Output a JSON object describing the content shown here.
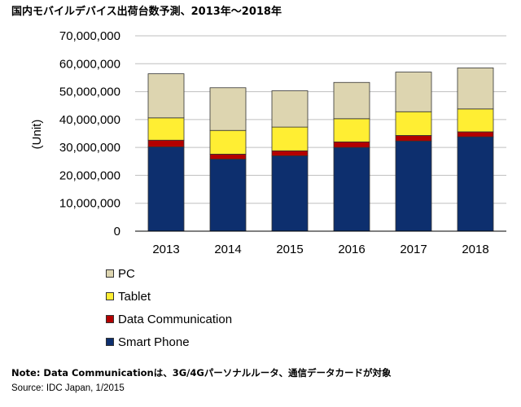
{
  "title": "国内モバイルデバイス出荷台数予測、2013年～2018年",
  "colors": {
    "pc": "#ddd5b0",
    "tablet": "#ffee33",
    "data_communication": "#b30000",
    "smart_phone": "#0d2f6e"
  },
  "chart_data": {
    "type": "bar",
    "stacked": true,
    "categories": [
      "2013",
      "2014",
      "2015",
      "2016",
      "2017",
      "2018"
    ],
    "ylabel": "(Unit)",
    "ylim": [
      0,
      70000000
    ],
    "yticks": [
      "0",
      "10,000,000",
      "20,000,000",
      "30,000,000",
      "40,000,000",
      "50,000,000",
      "60,000,000",
      "70,000,000"
    ],
    "grid": true,
    "legend_position": "bottom-left",
    "series": [
      {
        "name": "Smart Phone",
        "color_key": "smart_phone",
        "values": [
          30200000,
          25800000,
          27000000,
          30000000,
          32300000,
          33800000
        ]
      },
      {
        "name": "Data Communication",
        "color_key": "data_communication",
        "values": [
          2400000,
          1800000,
          1800000,
          2000000,
          2000000,
          1800000
        ]
      },
      {
        "name": "Tablet",
        "color_key": "tablet",
        "values": [
          8000000,
          8500000,
          8500000,
          8300000,
          8500000,
          8200000
        ]
      },
      {
        "name": "PC",
        "color_key": "pc",
        "values": [
          15800000,
          15300000,
          13000000,
          13000000,
          14200000,
          14700000
        ]
      }
    ]
  },
  "legend": [
    {
      "label": "PC",
      "color_key": "pc"
    },
    {
      "label": "Tablet",
      "color_key": "tablet"
    },
    {
      "label": "Data Communication",
      "color_key": "data_communication"
    },
    {
      "label": "Smart Phone",
      "color_key": "smart_phone"
    }
  ],
  "note": "Note: Data Communicationは、3G/4Gパーソナルルータ、通信データカードが対象",
  "source": "Source: IDC Japan, 1/2015"
}
